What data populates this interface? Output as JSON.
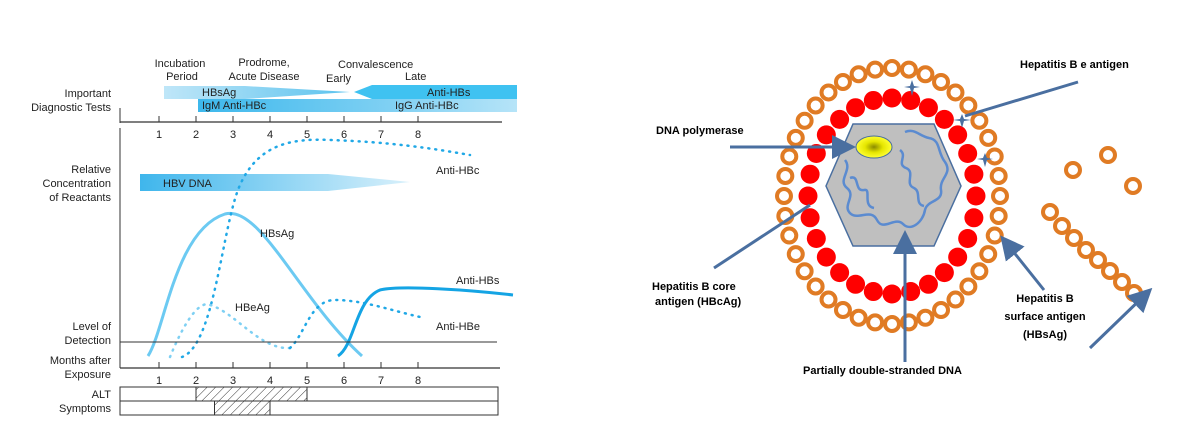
{
  "timeline": {
    "phases": {
      "incubation_1": "Incubation",
      "incubation_2": "Period",
      "prodrome_1": "Prodrome,",
      "prodrome_2": "Acute Disease",
      "convalescence": "Convalescence",
      "early": "Early",
      "late": "Late"
    },
    "row_labels": {
      "tests_1": "Important",
      "tests_2": "Diagnostic Tests",
      "conc_1": "Relative",
      "conc_2": "Concentration",
      "conc_3": "of Reactants",
      "lod_1": "Level of",
      "lod_2": "Detection",
      "months_1": "Months after",
      "months_2": "Exposure",
      "alt": "ALT",
      "symptoms": "Symptoms"
    },
    "test_bars": {
      "hbsag": "HBsAg",
      "anti_hbs": "Anti-HBs",
      "igm": "IgM Anti-HBc",
      "igg": "IgG Anti-HBc"
    },
    "hbv_dna": "HBV DNA",
    "months": [
      "1",
      "2",
      "3",
      "4",
      "5",
      "6",
      "7",
      "8"
    ],
    "curve_labels": {
      "anti_hbc": "Anti-HBc",
      "hbsag": "HBsAg",
      "hbeag": "HBeAg",
      "anti_hbs": "Anti-HBs",
      "anti_hbe": "Anti-HBe"
    },
    "alt_range_months": [
      2,
      5
    ],
    "symptoms_range_months": [
      2.5,
      4
    ]
  },
  "virion": {
    "labels": {
      "e_antigen": "Hepatitis B e antigen",
      "polymerase": "DNA polymerase",
      "core_1": "Hepatitis B core",
      "core_2": "antigen (HBcAg)",
      "dna": "Partially double-stranded DNA",
      "surface_1": "Hepatitis B",
      "surface_2": "surface antigen",
      "surface_3": "(HBsAg)"
    },
    "colors": {
      "surface_bead": "#e07b24",
      "core_bead": "#ff0000",
      "capsid": "#bfbfbf",
      "polymerase": "#f2f200",
      "arrow": "#4a6fa0"
    }
  }
}
